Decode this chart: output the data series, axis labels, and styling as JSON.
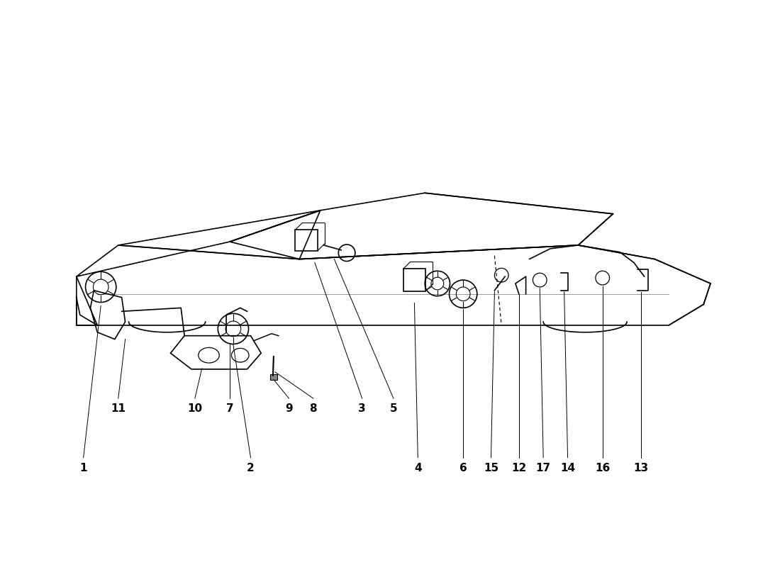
{
  "title": "",
  "background_color": "#ffffff",
  "line_color": "#000000",
  "label_color": "#000000",
  "figure_width": 11.0,
  "figure_height": 8.0,
  "dpi": 100
}
